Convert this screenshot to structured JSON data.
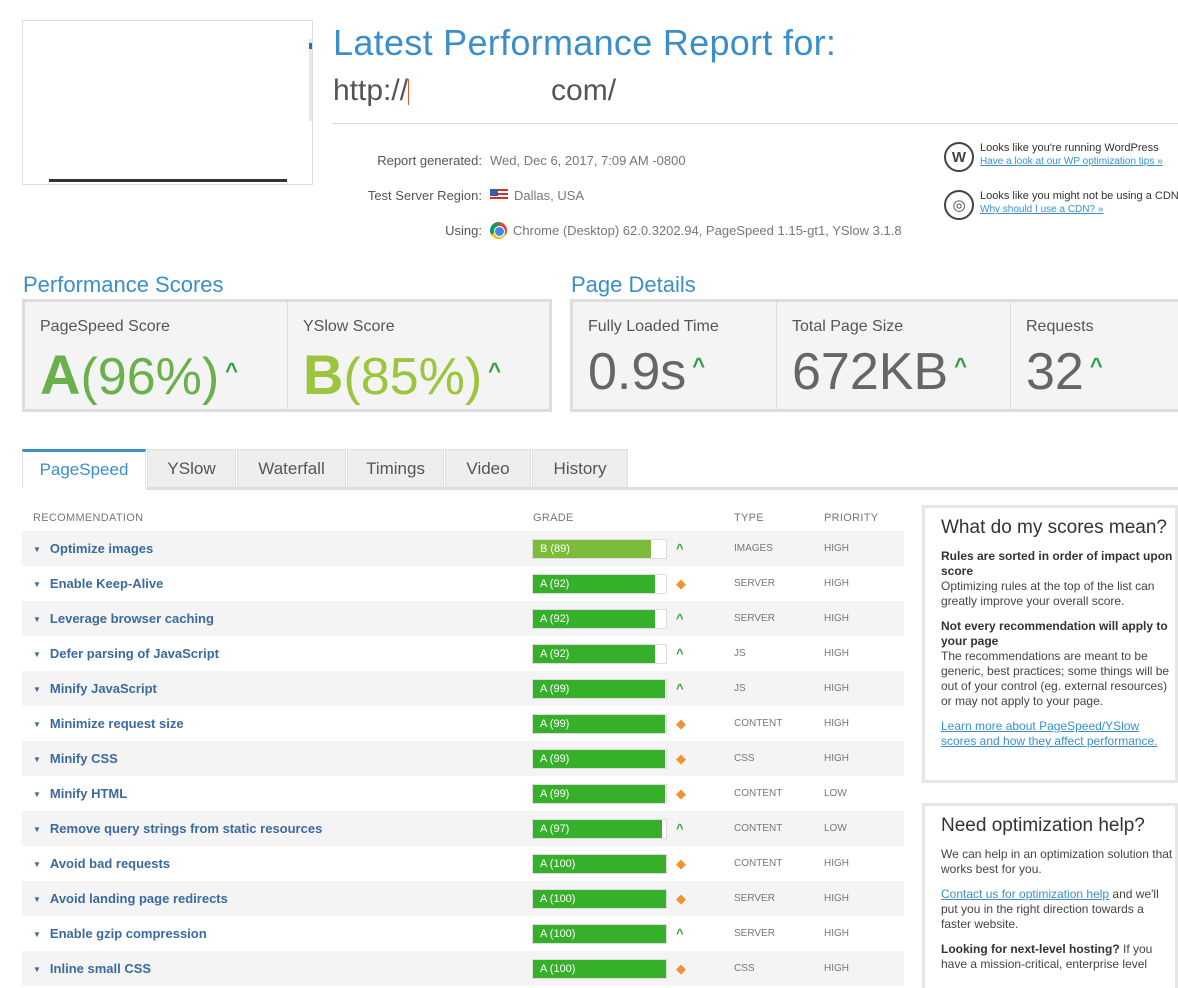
{
  "header": {
    "title": "Latest Performance Report for:",
    "url_prefix": "http://",
    "url_suffix": "com/"
  },
  "report": {
    "generated_label": "Report generated:",
    "generated_value": "Wed, Dec 6, 2017, 7:09 AM -0800",
    "region_label": "Test Server Region:",
    "region_value": "Dallas, USA",
    "using_label": "Using:",
    "using_value": "Chrome (Desktop) 62.0.3202.94, PageSpeed 1.15-gt1, YSlow 3.1.8"
  },
  "notices": [
    {
      "icon": "wordpress-icon",
      "glyph": "W",
      "title": "Looks like you're running WordPress",
      "link": "Have a look at our WP optimization tips »"
    },
    {
      "icon": "globe-icon",
      "glyph": "◎",
      "title": "Looks like you might not be using a CDN",
      "link": "Why should I use a CDN? »"
    }
  ],
  "scores": {
    "heading": "Performance Scores",
    "pagespeed_label": "PageSpeed Score",
    "pagespeed_grade": "A",
    "pagespeed_pct": "(96%)",
    "yslow_label": "YSlow Score",
    "yslow_grade": "B",
    "yslow_pct": "(85%)"
  },
  "details": {
    "heading": "Page Details",
    "load_label": "Fully Loaded Time",
    "load_value": "0.9s",
    "size_label": "Total Page Size",
    "size_value": "672KB",
    "req_label": "Requests",
    "req_value": "32"
  },
  "tabs": [
    "PageSpeed",
    "YSlow",
    "Waterfall",
    "Timings",
    "Video",
    "History"
  ],
  "table": {
    "col_recommendation": "RECOMMENDATION",
    "col_grade": "GRADE",
    "col_type": "TYPE",
    "col_priority": "PRIORITY",
    "rows": [
      {
        "name": "Optimize images",
        "grade": "B (89)",
        "pct": 89,
        "trend": "up",
        "type": "IMAGES",
        "priority": "HIGH"
      },
      {
        "name": "Enable Keep-Alive",
        "grade": "A (92)",
        "pct": 92,
        "trend": "same",
        "type": "SERVER",
        "priority": "HIGH"
      },
      {
        "name": "Leverage browser caching",
        "grade": "A (92)",
        "pct": 92,
        "trend": "up",
        "type": "SERVER",
        "priority": "HIGH"
      },
      {
        "name": "Defer parsing of JavaScript",
        "grade": "A (92)",
        "pct": 92,
        "trend": "up",
        "type": "JS",
        "priority": "HIGH"
      },
      {
        "name": "Minify JavaScript",
        "grade": "A (99)",
        "pct": 99,
        "trend": "up",
        "type": "JS",
        "priority": "HIGH"
      },
      {
        "name": "Minimize request size",
        "grade": "A (99)",
        "pct": 99,
        "trend": "same",
        "type": "CONTENT",
        "priority": "HIGH"
      },
      {
        "name": "Minify CSS",
        "grade": "A (99)",
        "pct": 99,
        "trend": "same",
        "type": "CSS",
        "priority": "HIGH"
      },
      {
        "name": "Minify HTML",
        "grade": "A (99)",
        "pct": 99,
        "trend": "same",
        "type": "CONTENT",
        "priority": "LOW"
      },
      {
        "name": "Remove query strings from static resources",
        "grade": "A (97)",
        "pct": 97,
        "trend": "up",
        "type": "CONTENT",
        "priority": "LOW"
      },
      {
        "name": "Avoid bad requests",
        "grade": "A (100)",
        "pct": 100,
        "trend": "same",
        "type": "CONTENT",
        "priority": "HIGH"
      },
      {
        "name": "Avoid landing page redirects",
        "grade": "A (100)",
        "pct": 100,
        "trend": "same",
        "type": "SERVER",
        "priority": "HIGH"
      },
      {
        "name": "Enable gzip compression",
        "grade": "A (100)",
        "pct": 100,
        "trend": "up",
        "type": "SERVER",
        "priority": "HIGH"
      },
      {
        "name": "Inline small CSS",
        "grade": "A (100)",
        "pct": 100,
        "trend": "same",
        "type": "CSS",
        "priority": "HIGH"
      }
    ]
  },
  "sidebar": {
    "scores_title": "What do my scores mean?",
    "scores_b1": "Rules are sorted in order of impact upon score",
    "scores_t1": "Optimizing rules at the top of the list can greatly improve your overall score.",
    "scores_b2": "Not every recommendation will apply to your page",
    "scores_t2": "The recommendations are meant to be generic, best practices; some things will be out of your control (eg. external resources) or may not apply to your page.",
    "scores_link": "Learn more about PageSpeed/YSlow scores and how they affect performance.",
    "help_title": "Need optimization help?",
    "help_t1": "We can help in an optimization solution that works best for you.",
    "help_link": "Contact us for optimization help",
    "help_t2": " and we'll put you in the right direction towards a faster website.",
    "help_b3": "Looking for next-level hosting?",
    "help_t3": " If you have a mission-critical, enterprise level"
  },
  "colors": {
    "accent": "#3a8fcb",
    "grade_a": "#36b02a",
    "grade_b": "#7cbc3a",
    "trend_up": "#2ea043",
    "trend_same": "#f0932b"
  }
}
